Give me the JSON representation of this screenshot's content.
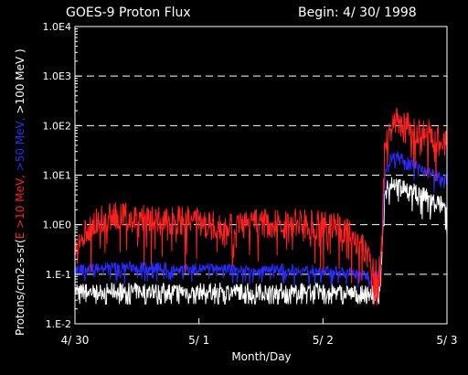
{
  "chart_data": {
    "type": "line",
    "title": "GOES-9 Proton Flux",
    "begin_label": "Begin: 4/ 30/ 1998",
    "xlabel": "Month/Day",
    "ylabel_parts": [
      {
        "text": "Protons/cm2-s-sr(",
        "color": "#ffffff"
      },
      {
        "text": "E >10 MeV, ",
        "color": "#ff2020"
      },
      {
        "text": ">50 MeV, ",
        "color": "#2a2aff"
      },
      {
        "text": ">100 MeV )",
        "color": "#ffffff"
      }
    ],
    "y_scale": "log",
    "ylim": [
      0.01,
      10000
    ],
    "y_ticks": [
      {
        "value": 0.01,
        "label": "1.E-2"
      },
      {
        "value": 0.1,
        "label": "1.E-1"
      },
      {
        "value": 1,
        "label": "1.0E0"
      },
      {
        "value": 10,
        "label": "1.0E1"
      },
      {
        "value": 100,
        "label": "1.0E2"
      },
      {
        "value": 1000,
        "label": "1.0E3"
      },
      {
        "value": 10000,
        "label": "1.0E4"
      }
    ],
    "grid": "horizontal dashed lines at 1.E-1, 1.0E0, 1.0E1, 1.0E2, 1.0E3",
    "x_unit": "days since 4/30 00:00 UT",
    "xlim": [
      0,
      3
    ],
    "x_ticks": [
      {
        "value": 0,
        "label": "4/ 30"
      },
      {
        "value": 1,
        "label": "5/ 1"
      },
      {
        "value": 2,
        "label": "5/ 2"
      },
      {
        "value": 3,
        "label": "5/ 3"
      }
    ],
    "series": [
      {
        "name": ">10 MeV",
        "color": "#ff2020",
        "x": [
          0.0,
          0.05,
          0.1,
          0.2,
          0.3,
          0.4,
          0.5,
          0.6,
          0.7,
          0.8,
          0.9,
          1.0,
          1.1,
          1.2,
          1.3,
          1.4,
          1.5,
          1.6,
          1.7,
          1.8,
          1.9,
          2.0,
          2.1,
          2.2,
          2.3,
          2.36,
          2.42,
          2.46,
          2.5,
          2.55,
          2.6,
          2.65,
          2.7,
          2.75,
          2.8,
          2.85,
          2.9,
          2.95,
          3.0
        ],
        "values": [
          0.25,
          0.4,
          0.8,
          1.2,
          1.5,
          1.4,
          1.6,
          1.3,
          1.2,
          1.3,
          1.2,
          1.1,
          1.0,
          1.0,
          1.0,
          1.0,
          1.1,
          1.0,
          1.0,
          1.1,
          1.0,
          1.0,
          0.9,
          0.8,
          0.4,
          0.25,
          0.12,
          0.15,
          40,
          95,
          130,
          100,
          90,
          80,
          75,
          70,
          55,
          50,
          45
        ],
        "noise": 0.6
      },
      {
        "name": ">50 MeV",
        "color": "#2a2aff",
        "x": [
          0.0,
          0.2,
          0.4,
          0.6,
          0.8,
          1.0,
          1.2,
          1.4,
          1.6,
          1.8,
          2.0,
          2.2,
          2.3,
          2.4,
          2.46,
          2.5,
          2.55,
          2.6,
          2.7,
          2.8,
          2.9,
          3.0
        ],
        "values": [
          0.12,
          0.14,
          0.14,
          0.14,
          0.13,
          0.13,
          0.13,
          0.13,
          0.13,
          0.12,
          0.12,
          0.11,
          0.1,
          0.09,
          0.09,
          12,
          22,
          25,
          18,
          14,
          10,
          8
        ],
        "noise": 0.22
      },
      {
        "name": ">100 MeV",
        "color": "#ffffff",
        "x": [
          0.0,
          0.4,
          0.8,
          1.2,
          1.6,
          2.0,
          2.3,
          2.46,
          2.5,
          2.55,
          2.6,
          2.7,
          2.8,
          2.9,
          3.0
        ],
        "values": [
          0.045,
          0.045,
          0.045,
          0.045,
          0.045,
          0.045,
          0.04,
          0.04,
          6,
          7.5,
          6.5,
          5,
          4,
          3,
          2.3
        ],
        "noise": 0.35,
        "floor": 0.025
      }
    ]
  }
}
